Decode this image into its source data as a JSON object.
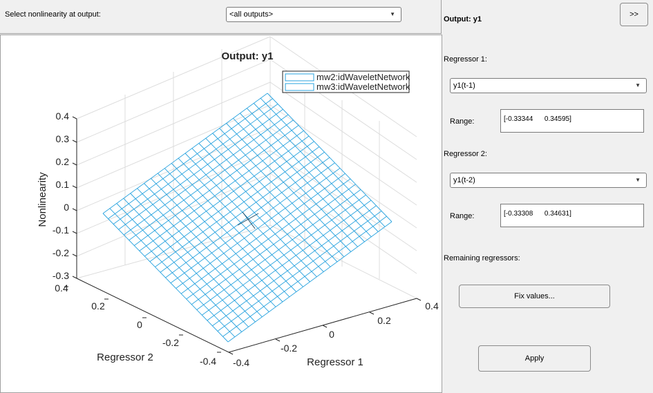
{
  "top": {
    "select_label": "Select nonlinearity at output:",
    "output_select_value": "<all outputs>"
  },
  "plot": {
    "title": "Output: y1",
    "legend": [
      "mw2:idWaveletNetwork",
      "mw3:idWaveletNetwork"
    ],
    "zlabel": "Nonlinearity",
    "xlabel": "Regressor 1",
    "ylabel": "Regressor 2",
    "z_ticks": [
      "0.4",
      "0.3",
      "0.2",
      "0.1",
      "0",
      "-0.1",
      "-0.2",
      "-0.3"
    ],
    "x_ticks": [
      "-0.4",
      "-0.2",
      "0",
      "0.2",
      "0.4"
    ],
    "y_ticks": [
      "0.4",
      "0.2",
      "0",
      "-0.2",
      "-0.4"
    ],
    "surface_color": "#29a3df"
  },
  "side": {
    "expand_label": ">>",
    "output_title": "Output: y1",
    "regressor1_label": "Regressor 1:",
    "regressor1_value": "y1(t-1)",
    "range1_label": "Range:",
    "range1_value": "[-0.33344      0.34595]",
    "regressor2_label": "Regressor 2:",
    "regressor2_value": "y1(t-2)",
    "range2_label": "Range:",
    "range2_value": "[-0.33308      0.34631]",
    "remaining_label": "Remaining regressors:",
    "fix_values_label": "Fix values...",
    "apply_label": "Apply"
  }
}
